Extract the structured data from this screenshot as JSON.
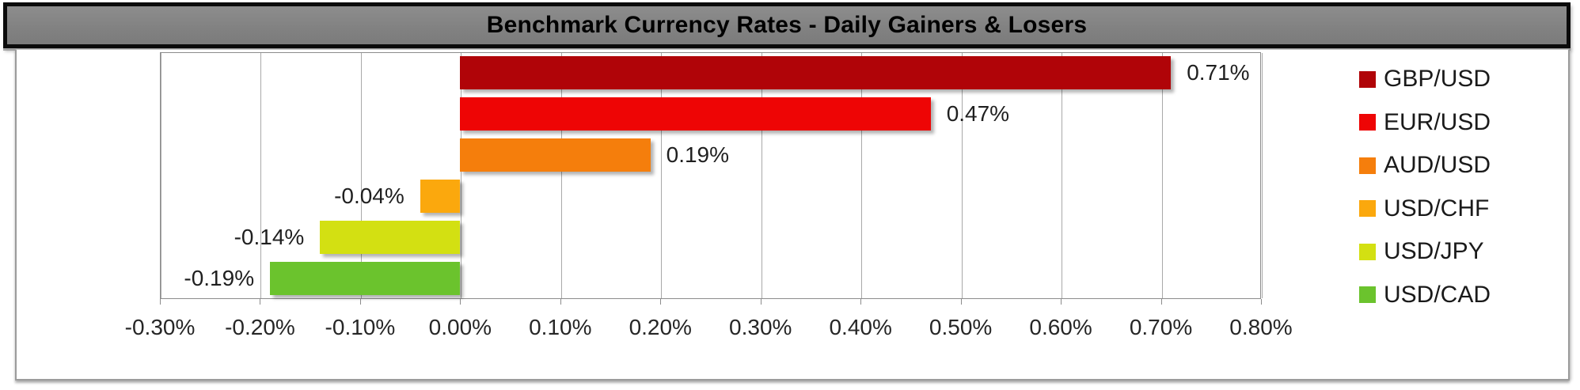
{
  "title_bar": {
    "text": "Benchmark Currency Rates - Daily Gainers & Losers",
    "background_color": "#828282",
    "border_color": "#0b0b0b",
    "text_color": "#000000"
  },
  "chart_data": {
    "type": "bar",
    "orientation": "horizontal",
    "title": "Benchmark Currency Rates - Daily Gainers & Losers",
    "categories": [
      "GBP/USD",
      "EUR/USD",
      "AUD/USD",
      "USD/CHF",
      "USD/JPY",
      "USD/CAD"
    ],
    "values": [
      0.71,
      0.47,
      0.19,
      -0.04,
      -0.14,
      -0.19
    ],
    "value_labels": [
      "0.71%",
      "0.47%",
      "0.19%",
      "-0.04%",
      "-0.14%",
      "-0.19%"
    ],
    "bar_colors": [
      "#B00408",
      "#EE0505",
      "#F57E0C",
      "#FBA80D",
      "#D3E012",
      "#6BC32D"
    ],
    "xlabel": "",
    "ylabel": "",
    "xlim": [
      -0.3,
      0.8
    ],
    "x_tick_step": 0.1,
    "x_tick_labels": [
      "-0.30%",
      "-0.20%",
      "-0.10%",
      "0.00%",
      "0.10%",
      "0.20%",
      "0.30%",
      "0.40%",
      "0.50%",
      "0.60%",
      "0.70%",
      "0.80%"
    ],
    "grid": true,
    "gridline_color": "#a9a9a9",
    "legend_position": "right",
    "legend_entries": [
      {
        "label": "GBP/USD",
        "color": "#B00408"
      },
      {
        "label": "EUR/USD",
        "color": "#EE0505"
      },
      {
        "label": "AUD/USD",
        "color": "#F57E0C"
      },
      {
        "label": "USD/CHF",
        "color": "#FBA80D"
      },
      {
        "label": "USD/JPY",
        "color": "#D3E012"
      },
      {
        "label": "USD/CAD",
        "color": "#6BC32D"
      }
    ]
  }
}
